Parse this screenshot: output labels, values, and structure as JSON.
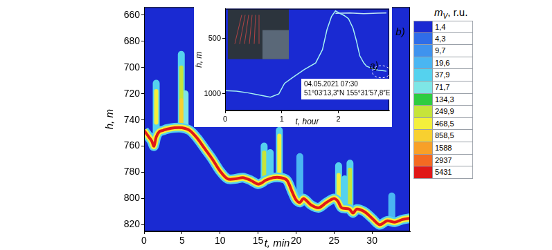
{
  "chart_data": [
    {
      "type": "heatmap",
      "panel_label": "b)",
      "xlabel": "t, min",
      "ylabel": "h, m",
      "xlim": [
        0,
        35
      ],
      "xticks": [
        0,
        5,
        10,
        15,
        20,
        25,
        30
      ],
      "ylim": [
        654,
        825
      ],
      "yticks": [
        660,
        680,
        700,
        720,
        740,
        760,
        780,
        800,
        820
      ],
      "grid": false,
      "bottom": {
        "t": [
          0,
          0.5,
          1,
          1.3,
          1.6,
          2,
          2.5,
          3,
          4,
          5,
          6,
          7,
          8,
          9,
          10,
          11,
          12,
          13,
          14,
          15,
          15.5,
          16,
          17,
          18,
          18.8,
          19.5,
          20,
          20.5,
          21,
          22,
          23,
          24,
          25,
          25.5,
          26,
          27,
          27.5,
          28,
          29,
          30,
          31,
          32,
          33,
          34,
          35
        ],
        "h": [
          748,
          752,
          756,
          760,
          753,
          749,
          748,
          747,
          746,
          746,
          748,
          754,
          762,
          770,
          779,
          785,
          785,
          784,
          786,
          789,
          788,
          786,
          784,
          784,
          786,
          795,
          801,
          803,
          800,
          805,
          807,
          803,
          800,
          802,
          807,
          808,
          811,
          808,
          810,
          815,
          820,
          817,
          818,
          816,
          815
        ],
        "mV": [
          37.9,
          468.5,
          5431
        ]
      },
      "echoes": [
        {
          "t": 1.6,
          "h": [
            712,
            750
          ],
          "mV": 37.9
        },
        {
          "t": 1.6,
          "h": [
            718,
            742
          ],
          "mV": 468.5
        },
        {
          "t": 4.9,
          "h": [
            690,
            745
          ],
          "mV": 37.9
        },
        {
          "t": 4.9,
          "h": [
            700,
            742
          ],
          "mV": 249.9
        },
        {
          "t": 4.9,
          "h": [
            725,
            742
          ],
          "mV": 858.5
        },
        {
          "t": 5.4,
          "h": [
            720,
            745
          ],
          "mV": 71.7
        },
        {
          "t": 15.8,
          "h": [
            760,
            785
          ],
          "mV": 37.9
        },
        {
          "t": 15.8,
          "h": [
            765,
            782
          ],
          "mV": 249.9
        },
        {
          "t": 16.6,
          "h": [
            765,
            785
          ],
          "mV": 37.9
        },
        {
          "t": 17.8,
          "h": [
            748,
            783
          ],
          "mV": 37.9
        },
        {
          "t": 17.8,
          "h": [
            752,
            780
          ],
          "mV": 468.5
        },
        {
          "t": 20.5,
          "h": [
            768,
            800
          ],
          "mV": 19.6
        },
        {
          "t": 25.6,
          "h": [
            775,
            800
          ],
          "mV": 37.9
        },
        {
          "t": 25.6,
          "h": [
            782,
            798
          ],
          "mV": 468.5
        },
        {
          "t": 26.4,
          "h": [
            785,
            805
          ],
          "mV": 37.9
        },
        {
          "t": 27.1,
          "h": [
            773,
            808
          ],
          "mV": 37.9
        },
        {
          "t": 27.1,
          "h": [
            778,
            805
          ],
          "mV": 249.9
        },
        {
          "t": 32.6,
          "h": [
            798,
            815
          ],
          "mV": 19.6
        }
      ],
      "colorbar": {
        "title": "m",
        "title_subscript": "V",
        "title_tail": ", r.u.",
        "levels": [
          {
            "value": 1.4,
            "label": "1,4",
            "color": "#1a2ad2"
          },
          {
            "value": 4.3,
            "label": "4,3",
            "color": "#2f6de8"
          },
          {
            "value": 9.7,
            "label": "9,7",
            "color": "#3f93ee"
          },
          {
            "value": 19.6,
            "label": "19,6",
            "color": "#4ab6f2"
          },
          {
            "value": 37.9,
            "label": "37,9",
            "color": "#55d2ee"
          },
          {
            "value": 71.7,
            "label": "71,7",
            "color": "#7ee6e6"
          },
          {
            "value": 134.3,
            "label": "134,3",
            "color": "#2ecc40"
          },
          {
            "value": 249.9,
            "label": "249,9",
            "color": "#c6e43a"
          },
          {
            "value": 468.5,
            "label": "468,5",
            "color": "#f4f03c"
          },
          {
            "value": 858.5,
            "label": "858,5",
            "color": "#f8d030"
          },
          {
            "value": 1588,
            "color": "#f8a028"
          },
          {
            "value": 2937,
            "color": "#f46a22"
          },
          {
            "value": 5431,
            "color": "#e01818"
          }
        ]
      }
    },
    {
      "type": "line",
      "panel_label": "a)",
      "xlabel": "t, hour",
      "ylabel": "h, m",
      "xlim": [
        0,
        2.9
      ],
      "xticks": [
        0,
        1,
        2
      ],
      "ylim": [
        230,
        1150
      ],
      "yticks": [
        500,
        1000
      ],
      "grid": false,
      "series": [
        {
          "color": "#a6f2f2",
          "x": [
            0,
            0.2,
            0.4,
            0.6,
            0.8,
            0.95,
            1.05,
            1.2,
            1.4,
            1.6,
            1.72,
            1.8,
            1.88,
            1.95,
            2.02,
            2.1,
            2.18,
            2.26,
            2.32,
            2.38,
            2.45,
            2.5,
            2.6,
            2.7,
            2.78,
            2.85
          ],
          "values": [
            970,
            975,
            990,
            1010,
            1030,
            1000,
            905,
            850,
            780,
            720,
            600,
            420,
            300,
            250,
            270,
            290,
            320,
            406,
            520,
            656,
            720,
            750,
            770,
            785,
            790,
            795
          ]
        },
        {
          "color": "#bfe4f4",
          "x": [
            1.95,
            2.2,
            2.45,
            2.7,
            2.85
          ],
          "values": [
            272,
            268,
            274,
            270,
            268
          ]
        }
      ],
      "annotations": [
        "04.05.2021 07:30",
        "51°03′13,3″N 155°31′57,8″E"
      ],
      "highlight": {
        "xlim": [
          2.6,
          2.92
        ],
        "ylim": [
          745,
          855
        ]
      }
    }
  ]
}
